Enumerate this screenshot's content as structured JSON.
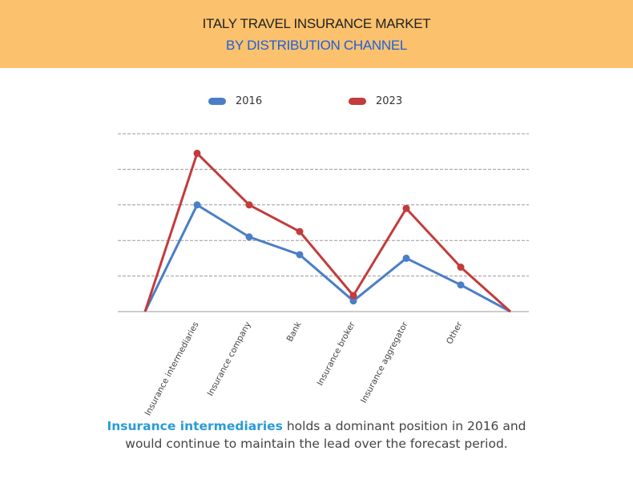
{
  "header": {
    "title_line1": "ITALY TRAVEL INSURANCE MARKET",
    "title_line2": "BY DISTRIBUTION CHANNEL",
    "background": "#fbc16c",
    "subtitle_color": "#1a5fe0"
  },
  "legend": [
    {
      "label": "2016",
      "color": "#4a7fc7"
    },
    {
      "label": "2023",
      "color": "#c33b3b"
    }
  ],
  "caption": {
    "highlight": "Insurance intermediaries",
    "line1_rest": " holds a dominant position in 2016 and",
    "line2": "would continue to maintain the lead over the forecast period."
  },
  "chart_data": {
    "type": "line",
    "title": "Italy Travel Insurance Market by Distribution Channel",
    "xlabel": "",
    "ylabel": "",
    "categories": [
      "Insurance intermediaries",
      "Insurance company",
      "Bank",
      "Insurance broker",
      "Insurance aggregator",
      "Other"
    ],
    "series": [
      {
        "name": "2016",
        "color": "#4a7fc7",
        "values": [
          3.0,
          2.1,
          1.6,
          0.3,
          1.5,
          0.75
        ]
      },
      {
        "name": "2023",
        "color": "#c33b3b",
        "values": [
          4.45,
          3.0,
          2.25,
          0.45,
          2.9,
          1.25
        ]
      }
    ],
    "line_start_and_end_at_zero": true,
    "ylim": [
      0,
      5
    ],
    "y_tick_labels_shown": false,
    "grid": true,
    "grid_style": "dashed horizontal",
    "legend_position": "top"
  }
}
